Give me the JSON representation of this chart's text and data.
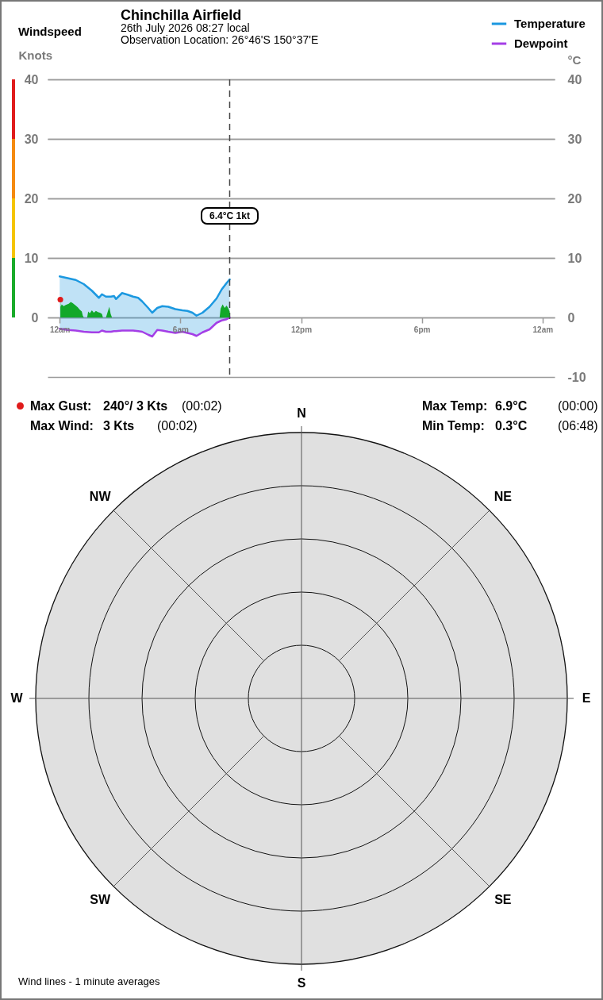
{
  "chart_data": [
    {
      "type": "line",
      "title": "Chinchilla Airfield",
      "subtitle": "26th July 2026  08:27 local",
      "ylabel": "Knots",
      "y2label": "°C",
      "annotations": [
        "Windspeed",
        "Observation Location: 26°46'S 150°37'E"
      ],
      "xlim": [
        "2026-07-25T23:24",
        "2026-07-27T00:36"
      ],
      "xticks": [
        {
          "value": "2026-07-26T00:00",
          "label": "12am"
        },
        {
          "value": "2026-07-26T06:00",
          "label": "6am"
        },
        {
          "value": "2026-07-26T12:00",
          "label": "12pm"
        },
        {
          "value": "2026-07-26T18:00",
          "label": "6pm"
        },
        {
          "value": "2026-07-27T00:00",
          "label": "12am"
        }
      ],
      "ylim": [
        -10,
        40
      ],
      "yticks": [
        0,
        10,
        20,
        30,
        40
      ],
      "y2lim": [
        -10,
        40
      ],
      "y2ticks": [
        -10,
        0,
        10,
        20,
        30,
        40
      ],
      "grid": "y",
      "legend": "top right",
      "series": [
        {
          "name": "Temperature",
          "type": "line",
          "axis": "y2",
          "color": "#1b98e0",
          "x": [
            "2026-07-26T00:00",
            "2026-07-26T00:24",
            "2026-07-26T00:48",
            "2026-07-26T01:12",
            "2026-07-26T01:36",
            "2026-07-26T01:57",
            "2026-07-26T02:06",
            "2026-07-26T02:18",
            "2026-07-26T02:33",
            "2026-07-26T02:42",
            "2026-07-26T02:48",
            "2026-07-26T03:06",
            "2026-07-26T03:24",
            "2026-07-26T03:39",
            "2026-07-26T03:54",
            "2026-07-26T04:06",
            "2026-07-26T04:24",
            "2026-07-26T04:36",
            "2026-07-26T04:51",
            "2026-07-26T05:06",
            "2026-07-26T05:24",
            "2026-07-26T05:45",
            "2026-07-26T06:06",
            "2026-07-26T06:21",
            "2026-07-26T06:36",
            "2026-07-26T06:48",
            "2026-07-26T07:06",
            "2026-07-26T07:27",
            "2026-07-26T07:48",
            "2026-07-26T08:03",
            "2026-07-26T08:18",
            "2026-07-26T08:27"
          ],
          "values": [
            6.9,
            6.6,
            6.3,
            5.6,
            4.5,
            3.3,
            3.9,
            3.5,
            3.5,
            3.6,
            3.1,
            4.1,
            3.8,
            3.5,
            3.3,
            2.7,
            1.6,
            0.8,
            1.6,
            1.9,
            1.8,
            1.4,
            1.2,
            1.1,
            0.8,
            0.3,
            0.8,
            1.8,
            3.2,
            4.7,
            5.8,
            6.4
          ],
          "lower": [
            -1.9,
            -2.1,
            -2.2,
            -2.4,
            -2.5,
            -2.5,
            -2.2,
            -2.4,
            -2.4,
            -2.3,
            -2.3,
            -2.2,
            -2.2,
            -2.2,
            -2.3,
            -2.4,
            -2.9,
            -3.2,
            -2.1,
            -2.2,
            -2.4,
            -2.6,
            -2.4,
            -2.6,
            -2.8,
            -3.1,
            -2.5,
            -2.0,
            -0.9,
            -0.5,
            -0.3,
            0.0
          ],
          "upper": [
            6.9,
            6.6,
            6.3,
            5.6,
            4.5,
            3.3,
            3.9,
            3.5,
            3.5,
            3.6,
            3.1,
            4.1,
            3.8,
            3.5,
            3.3,
            2.7,
            1.6,
            0.8,
            1.6,
            1.9,
            1.8,
            1.4,
            1.2,
            1.1,
            0.8,
            0.3,
            0.8,
            1.8,
            3.2,
            4.7,
            5.8,
            6.4
          ]
        },
        {
          "name": "Dewpoint",
          "type": "line",
          "axis": "y2",
          "color": "#a43ee6",
          "x": [
            "2026-07-26T00:00",
            "2026-07-26T00:24",
            "2026-07-26T00:48",
            "2026-07-26T01:12",
            "2026-07-26T01:36",
            "2026-07-26T01:57",
            "2026-07-26T02:06",
            "2026-07-26T02:18",
            "2026-07-26T02:33",
            "2026-07-26T02:42",
            "2026-07-26T02:48",
            "2026-07-26T03:06",
            "2026-07-26T03:24",
            "2026-07-26T03:39",
            "2026-07-26T03:54",
            "2026-07-26T04:06",
            "2026-07-26T04:24",
            "2026-07-26T04:36",
            "2026-07-26T04:51",
            "2026-07-26T05:06",
            "2026-07-26T05:24",
            "2026-07-26T05:45",
            "2026-07-26T06:06",
            "2026-07-26T06:21",
            "2026-07-26T06:36",
            "2026-07-26T06:48",
            "2026-07-26T07:06",
            "2026-07-26T07:27",
            "2026-07-26T07:48",
            "2026-07-26T08:03",
            "2026-07-26T08:18",
            "2026-07-26T08:27"
          ],
          "values": [
            -1.9,
            -2.1,
            -2.2,
            -2.4,
            -2.5,
            -2.5,
            -2.2,
            -2.4,
            -2.4,
            -2.3,
            -2.3,
            -2.2,
            -2.2,
            -2.2,
            -2.3,
            -2.4,
            -2.9,
            -3.2,
            -2.1,
            -2.2,
            -2.4,
            -2.6,
            -2.4,
            -2.6,
            -2.8,
            -3.1,
            -2.5,
            -2.0,
            -0.9,
            -0.5,
            -0.3,
            0.0
          ]
        },
        {
          "type": "area",
          "color": "#12a82a",
          "x": [
            "2026-07-26T00:02",
            "2026-07-26T00:03",
            "2026-07-26T00:06",
            "2026-07-26T00:12",
            "2026-07-26T00:18",
            "2026-07-26T00:27",
            "2026-07-26T00:33",
            "2026-07-26T00:39",
            "2026-07-26T00:48",
            "2026-07-26T00:54",
            "2026-07-26T01:00",
            "2026-07-26T01:06",
            "2026-07-26T01:09",
            "2026-07-26T01:12",
            "2026-07-26T01:22",
            "2026-07-26T01:25",
            "2026-07-26T01:30",
            "2026-07-26T01:36",
            "2026-07-26T01:42",
            "2026-07-26T01:48",
            "2026-07-26T01:54",
            "2026-07-26T02:00",
            "2026-07-26T02:06",
            "2026-07-26T02:09",
            "2026-07-26T02:18",
            "2026-07-26T02:23",
            "2026-07-26T02:28",
            "2026-07-26T02:32",
            "2026-07-26T02:36",
            "2026-07-26T07:57",
            "2026-07-26T08:00",
            "2026-07-26T08:06",
            "2026-07-26T08:12",
            "2026-07-26T08:18",
            "2026-07-26T08:24",
            "2026-07-26T08:27"
          ],
          "values": [
            3,
            1.8,
            2.2,
            1.9,
            2.1,
            2.3,
            2.6,
            2.4,
            2.0,
            1.7,
            1.3,
            1.0,
            0.3,
            0,
            0,
            1.0,
            0.7,
            1.2,
            0.8,
            1.1,
            0.9,
            0.8,
            0.6,
            0,
            0,
            0.9,
            1.8,
            0.6,
            0,
            0,
            1.5,
            2.2,
            1.6,
            2.0,
            1.4,
            1
          ]
        },
        {
          "type": "scatter",
          "color": "#e01b1b",
          "x": [
            "2026-07-26T00:02"
          ],
          "values": [
            3
          ]
        }
      ],
      "ref_lines": [
        {
          "axis": "x",
          "value": "2026-07-26T08:27",
          "label": "6.4°C  1kt",
          "color": "#444444",
          "line_style": "dashed"
        }
      ]
    },
    {
      "type": "other",
      "categories": [
        "N",
        "NE",
        "E",
        "SE",
        "S",
        "SW",
        "W",
        "NW"
      ],
      "annotations": [
        "Max Gust:",
        "240°/ 3 Kts",
        "(00:02)",
        "Max Wind:",
        "3 Kts",
        "(00:02)",
        "Max Temp:",
        "6.9°C",
        "(00:00)",
        "Min Temp:",
        "0.3°C",
        "(06:48)",
        "Wind lines - 1 minute averages"
      ]
    }
  ]
}
